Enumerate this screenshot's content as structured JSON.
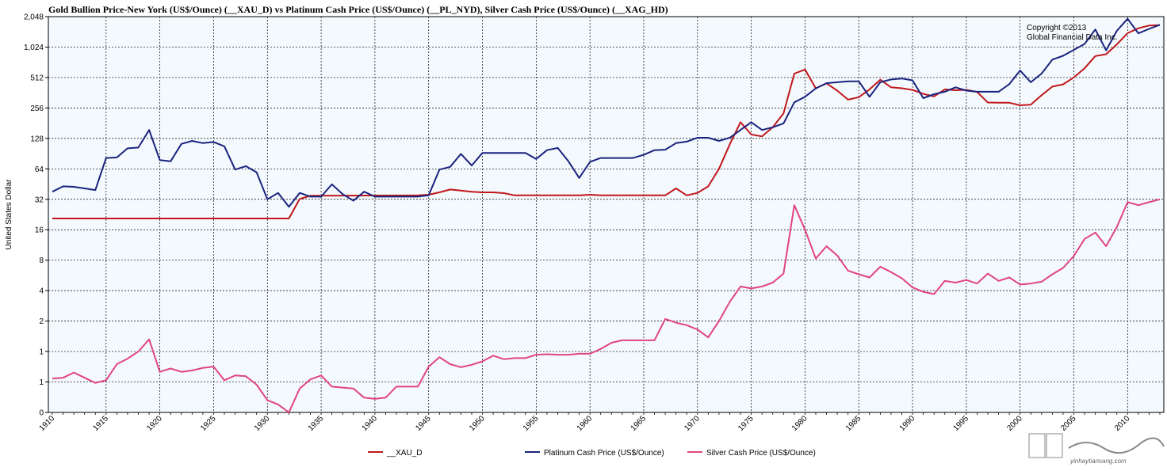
{
  "chart_data": {
    "type": "line",
    "title": "Gold Bullion Price-New York (US$/Ounce) (__XAU_D)  vs  Platinum Cash Price (US$/Ounce) (__PL_NYD), Silver Cash Price (US$/Ounce) (__XAG_HD)",
    "ylabel": "United States Dollar",
    "xlabel": "",
    "yscale": "log2",
    "ylim": [
      0.25,
      2048
    ],
    "xlim": [
      1910,
      2013
    ],
    "grid": true,
    "legend_position": "bottom",
    "copyright": [
      "Copyright ©2013",
      "Global Financial Data Inc."
    ],
    "y_ticks": [
      {
        "value": 0.25,
        "label": "0"
      },
      {
        "value": 0.5,
        "label": "1"
      },
      {
        "value": 1,
        "label": "1"
      },
      {
        "value": 2,
        "label": "2"
      },
      {
        "value": 4,
        "label": "4"
      },
      {
        "value": 8,
        "label": "8"
      },
      {
        "value": 16,
        "label": "16"
      },
      {
        "value": 32,
        "label": "32"
      },
      {
        "value": 64,
        "label": "64"
      },
      {
        "value": 128,
        "label": "128"
      },
      {
        "value": 256,
        "label": "256"
      },
      {
        "value": 512,
        "label": "512"
      },
      {
        "value": 1024,
        "label": "1,024"
      },
      {
        "value": 2048,
        "label": "2,048"
      }
    ],
    "x_ticks": [
      1910,
      1915,
      1920,
      1925,
      1930,
      1935,
      1940,
      1945,
      1950,
      1955,
      1960,
      1965,
      1970,
      1975,
      1980,
      1985,
      1990,
      1995,
      2000,
      2005,
      2010
    ],
    "series": [
      {
        "name": "__XAU_D",
        "color": "#c0181c",
        "points": [
          [
            1910,
            20.67
          ],
          [
            1932,
            20.67
          ],
          [
            1933,
            32.3
          ],
          [
            1934,
            34.7
          ],
          [
            1944,
            35
          ],
          [
            1945,
            35.5
          ],
          [
            1946,
            37.5
          ],
          [
            1947,
            40
          ],
          [
            1948,
            39
          ],
          [
            1949,
            38
          ],
          [
            1950,
            37.5
          ],
          [
            1951,
            37.5
          ],
          [
            1952,
            36.8
          ],
          [
            1953,
            35
          ],
          [
            1954,
            35
          ],
          [
            1959,
            35
          ],
          [
            1960,
            35.5
          ],
          [
            1961,
            35
          ],
          [
            1967,
            35
          ],
          [
            1968,
            41
          ],
          [
            1969,
            35
          ],
          [
            1970,
            37
          ],
          [
            1971,
            43
          ],
          [
            1972,
            64
          ],
          [
            1973,
            112
          ],
          [
            1974,
            185
          ],
          [
            1975,
            140
          ],
          [
            1976,
            134
          ],
          [
            1977,
            165
          ],
          [
            1978,
            226
          ],
          [
            1979,
            560
          ],
          [
            1980,
            615
          ],
          [
            1981,
            400
          ],
          [
            1982,
            448
          ],
          [
            1983,
            380
          ],
          [
            1984,
            309
          ],
          [
            1985,
            327
          ],
          [
            1986,
            391
          ],
          [
            1987,
            487
          ],
          [
            1988,
            410
          ],
          [
            1989,
            401
          ],
          [
            1990,
            386
          ],
          [
            1991,
            353
          ],
          [
            1992,
            333
          ],
          [
            1993,
            391
          ],
          [
            1994,
            383
          ],
          [
            1995,
            387
          ],
          [
            1996,
            369
          ],
          [
            1997,
            290
          ],
          [
            1998,
            288
          ],
          [
            1999,
            288
          ],
          [
            2000,
            272
          ],
          [
            2001,
            276
          ],
          [
            2002,
            342
          ],
          [
            2003,
            416
          ],
          [
            2004,
            438
          ],
          [
            2005,
            513
          ],
          [
            2006,
            632
          ],
          [
            2007,
            834
          ],
          [
            2008,
            870
          ],
          [
            2009,
            1087
          ],
          [
            2010,
            1405
          ],
          [
            2011,
            1570
          ],
          [
            2012,
            1670
          ],
          [
            2013,
            1690
          ]
        ]
      },
      {
        "name": "Platinum Cash Price (US$/Ounce)",
        "color": "#1a237e",
        "points": [
          [
            1910,
            38
          ],
          [
            1911,
            43
          ],
          [
            1912,
            42.5
          ],
          [
            1913,
            41
          ],
          [
            1914,
            39.5
          ],
          [
            1915,
            82
          ],
          [
            1916,
            83
          ],
          [
            1917,
            102
          ],
          [
            1918,
            104
          ],
          [
            1919,
            155
          ],
          [
            1920,
            78
          ],
          [
            1921,
            76
          ],
          [
            1922,
            113
          ],
          [
            1923,
            121
          ],
          [
            1924,
            115
          ],
          [
            1925,
            118
          ],
          [
            1926,
            107
          ],
          [
            1927,
            63
          ],
          [
            1928,
            68
          ],
          [
            1929,
            59
          ],
          [
            1930,
            32
          ],
          [
            1931,
            37
          ],
          [
            1932,
            27
          ],
          [
            1933,
            37
          ],
          [
            1934,
            34
          ],
          [
            1935,
            34
          ],
          [
            1936,
            45
          ],
          [
            1937,
            36
          ],
          [
            1938,
            31
          ],
          [
            1939,
            38
          ],
          [
            1940,
            34
          ],
          [
            1944,
            34
          ],
          [
            1945,
            35
          ],
          [
            1946,
            63
          ],
          [
            1947,
            67
          ],
          [
            1948,
            90
          ],
          [
            1949,
            69
          ],
          [
            1950,
            92
          ],
          [
            1954,
            92
          ],
          [
            1955,
            80
          ],
          [
            1956,
            98
          ],
          [
            1957,
            103
          ],
          [
            1958,
            76
          ],
          [
            1959,
            52
          ],
          [
            1960,
            75
          ],
          [
            1961,
            82
          ],
          [
            1964,
            82
          ],
          [
            1965,
            88
          ],
          [
            1966,
            98
          ],
          [
            1967,
            99
          ],
          [
            1968,
            115
          ],
          [
            1969,
            119
          ],
          [
            1970,
            130
          ],
          [
            1971,
            130
          ],
          [
            1972,
            121
          ],
          [
            1973,
            130
          ],
          [
            1974,
            155
          ],
          [
            1975,
            185
          ],
          [
            1976,
            155
          ],
          [
            1977,
            165
          ],
          [
            1978,
            180
          ],
          [
            1979,
            291
          ],
          [
            1980,
            330
          ],
          [
            1981,
            400
          ],
          [
            1982,
            450
          ],
          [
            1983,
            460
          ],
          [
            1984,
            470
          ],
          [
            1985,
            470
          ],
          [
            1986,
            330
          ],
          [
            1987,
            460
          ],
          [
            1988,
            490
          ],
          [
            1989,
            500
          ],
          [
            1990,
            480
          ],
          [
            1991,
            320
          ],
          [
            1992,
            350
          ],
          [
            1993,
            370
          ],
          [
            1994,
            410
          ],
          [
            1995,
            380
          ],
          [
            1996,
            370
          ],
          [
            1997,
            370
          ],
          [
            1998,
            370
          ],
          [
            1999,
            440
          ],
          [
            2000,
            600
          ],
          [
            2001,
            460
          ],
          [
            2002,
            560
          ],
          [
            2003,
            770
          ],
          [
            2004,
            840
          ],
          [
            2005,
            960
          ],
          [
            2006,
            1100
          ],
          [
            2007,
            1530
          ],
          [
            2008,
            950
          ],
          [
            2009,
            1480
          ],
          [
            2010,
            1950
          ],
          [
            2011,
            1400
          ],
          [
            2012,
            1550
          ],
          [
            2013,
            1700
          ]
        ]
      },
      {
        "name": "Silver Cash Price (US$/Ounce)",
        "color": "#e0457f",
        "points": [
          [
            1910,
            0.54
          ],
          [
            1911,
            0.55
          ],
          [
            1912,
            0.62
          ],
          [
            1913,
            0.55
          ],
          [
            1914,
            0.49
          ],
          [
            1915,
            0.52
          ],
          [
            1916,
            0.75
          ],
          [
            1917,
            0.85
          ],
          [
            1918,
            1.0
          ],
          [
            1919,
            1.32
          ],
          [
            1920,
            0.63
          ],
          [
            1921,
            0.68
          ],
          [
            1922,
            0.63
          ],
          [
            1923,
            0.65
          ],
          [
            1924,
            0.69
          ],
          [
            1925,
            0.71
          ],
          [
            1926,
            0.52
          ],
          [
            1927,
            0.58
          ],
          [
            1928,
            0.57
          ],
          [
            1929,
            0.47
          ],
          [
            1930,
            0.33
          ],
          [
            1931,
            0.3
          ],
          [
            1932,
            0.25
          ],
          [
            1933,
            0.43
          ],
          [
            1934,
            0.53
          ],
          [
            1935,
            0.58
          ],
          [
            1936,
            0.45
          ],
          [
            1937,
            0.44
          ],
          [
            1938,
            0.43
          ],
          [
            1939,
            0.35
          ],
          [
            1940,
            0.34
          ],
          [
            1941,
            0.35
          ],
          [
            1942,
            0.45
          ],
          [
            1944,
            0.45
          ],
          [
            1945,
            0.71
          ],
          [
            1946,
            0.88
          ],
          [
            1947,
            0.75
          ],
          [
            1948,
            0.7
          ],
          [
            1949,
            0.74
          ],
          [
            1950,
            0.8
          ],
          [
            1951,
            0.91
          ],
          [
            1952,
            0.84
          ],
          [
            1953,
            0.86
          ],
          [
            1954,
            0.86
          ],
          [
            1955,
            0.93
          ],
          [
            1956,
            0.94
          ],
          [
            1957,
            0.93
          ],
          [
            1958,
            0.93
          ],
          [
            1959,
            0.95
          ],
          [
            1960,
            0.95
          ],
          [
            1961,
            1.06
          ],
          [
            1962,
            1.22
          ],
          [
            1963,
            1.29
          ],
          [
            1964,
            1.29
          ],
          [
            1965,
            1.29
          ],
          [
            1966,
            1.29
          ],
          [
            1967,
            2.1
          ],
          [
            1968,
            1.93
          ],
          [
            1969,
            1.82
          ],
          [
            1970,
            1.65
          ],
          [
            1971,
            1.38
          ],
          [
            1972,
            2.0
          ],
          [
            1973,
            3.1
          ],
          [
            1974,
            4.4
          ],
          [
            1975,
            4.2
          ],
          [
            1976,
            4.4
          ],
          [
            1977,
            4.8
          ],
          [
            1978,
            5.9
          ],
          [
            1979,
            28
          ],
          [
            1980,
            16
          ],
          [
            1981,
            8.3
          ],
          [
            1982,
            11
          ],
          [
            1983,
            8.9
          ],
          [
            1984,
            6.3
          ],
          [
            1985,
            5.8
          ],
          [
            1986,
            5.4
          ],
          [
            1987,
            6.9
          ],
          [
            1988,
            6.1
          ],
          [
            1989,
            5.3
          ],
          [
            1990,
            4.3
          ],
          [
            1991,
            3.9
          ],
          [
            1992,
            3.7
          ],
          [
            1993,
            5.0
          ],
          [
            1994,
            4.8
          ],
          [
            1995,
            5.1
          ],
          [
            1996,
            4.7
          ],
          [
            1997,
            5.9
          ],
          [
            1998,
            5.0
          ],
          [
            1999,
            5.4
          ],
          [
            2000,
            4.6
          ],
          [
            2001,
            4.7
          ],
          [
            2002,
            4.9
          ],
          [
            2003,
            5.8
          ],
          [
            2004,
            6.7
          ],
          [
            2005,
            8.8
          ],
          [
            2006,
            13
          ],
          [
            2007,
            15
          ],
          [
            2008,
            11
          ],
          [
            2009,
            17
          ],
          [
            2010,
            30
          ],
          [
            2011,
            28
          ],
          [
            2012,
            30
          ],
          [
            2013,
            32
          ]
        ]
      }
    ]
  },
  "watermark": {
    "text": "yinhaytiansang.com"
  }
}
